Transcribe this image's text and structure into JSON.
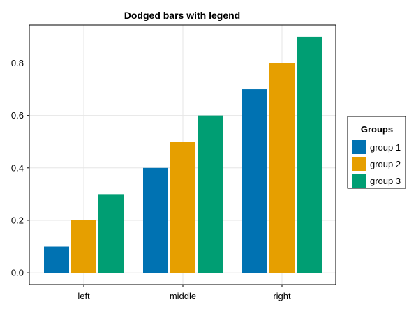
{
  "chart_data": {
    "type": "bar",
    "title": "Dodged bars with legend",
    "xlabel": "",
    "ylabel": "",
    "categories": [
      "left",
      "middle",
      "right"
    ],
    "series": [
      {
        "name": "group 1",
        "color": "#0072b2",
        "values": [
          0.1,
          0.4,
          0.7
        ]
      },
      {
        "name": "group 2",
        "color": "#e69f00",
        "values": [
          0.2,
          0.5,
          0.8
        ]
      },
      {
        "name": "group 3",
        "color": "#009e73",
        "values": [
          0.3,
          0.6,
          0.9
        ]
      }
    ],
    "ylim": [
      -0.045,
      0.945
    ],
    "yticks": [
      "0.0",
      "0.2",
      "0.4",
      "0.6",
      "0.8"
    ],
    "grid": true,
    "legend": {
      "title": "Groups",
      "position": "right"
    }
  }
}
